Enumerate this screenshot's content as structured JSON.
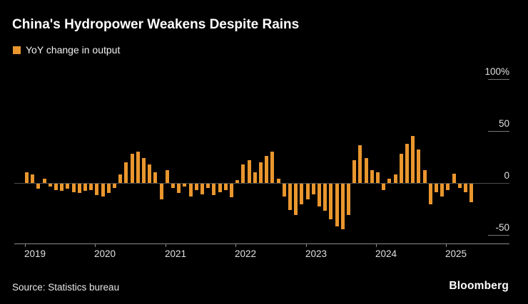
{
  "header": {
    "title": "China's Hydropower Weakens Despite Rains"
  },
  "legend": {
    "label": "YoY change in output",
    "swatch_color": "#E9962E"
  },
  "y_axis": {
    "labels": [
      "100%",
      "50",
      "0",
      "-50"
    ]
  },
  "x_axis": {
    "labels": [
      "2019",
      "2020",
      "2021",
      "2022",
      "2023",
      "2024",
      "2025"
    ]
  },
  "footer": {
    "source": "Source: Statistics bureau",
    "brand": "Bloomberg"
  },
  "chart_data": {
    "type": "bar",
    "title": "China's Hydropower Weakens Despite Rains",
    "series_name": "YoY change in output",
    "unit": "%",
    "ylim": [
      -50,
      100
    ],
    "y_ticks": [
      100,
      50,
      0,
      -50
    ],
    "grid": "zero-line only, right-side tick stubs",
    "legend_position": "top-left",
    "bar_color": "#E9962E",
    "x": [
      "2019-01",
      "2019-02",
      "2019-03",
      "2019-04",
      "2019-05",
      "2019-06",
      "2019-07",
      "2019-08",
      "2019-09",
      "2019-10",
      "2019-11",
      "2019-12",
      "2020-01",
      "2020-02",
      "2020-03",
      "2020-04",
      "2020-05",
      "2020-06",
      "2020-07",
      "2020-08",
      "2020-09",
      "2020-10",
      "2020-11",
      "2020-12",
      "2021-01",
      "2021-02",
      "2021-03",
      "2021-04",
      "2021-05",
      "2021-06",
      "2021-07",
      "2021-08",
      "2021-09",
      "2021-10",
      "2021-11",
      "2021-12",
      "2022-01",
      "2022-02",
      "2022-03",
      "2022-04",
      "2022-05",
      "2022-06",
      "2022-07",
      "2022-08",
      "2022-09",
      "2022-10",
      "2022-11",
      "2022-12",
      "2023-01",
      "2023-02",
      "2023-03",
      "2023-04",
      "2023-05",
      "2023-06",
      "2023-07",
      "2023-08",
      "2023-09",
      "2023-10",
      "2023-11",
      "2023-12",
      "2024-01",
      "2024-02",
      "2024-03",
      "2024-04",
      "2024-05",
      "2024-06",
      "2024-07",
      "2024-08",
      "2024-09",
      "2024-10",
      "2024-11",
      "2024-12",
      "2025-01",
      "2025-02",
      "2025-03",
      "2025-04",
      "2025-05"
    ],
    "values": [
      10,
      8,
      -5,
      4,
      -3,
      -6,
      -7,
      -5,
      -8,
      -9,
      -7,
      -6,
      -11,
      -12,
      -9,
      -4,
      8,
      20,
      28,
      30,
      24,
      18,
      10,
      -15,
      12,
      -4,
      -9,
      -3,
      -12,
      -6,
      -10,
      -4,
      -11,
      -8,
      -6,
      -13,
      3,
      18,
      22,
      10,
      20,
      26,
      30,
      4,
      -12,
      -25,
      -30,
      -20,
      -15,
      -10,
      -22,
      -26,
      -34,
      -41,
      -44,
      -30,
      22,
      36,
      24,
      12,
      10,
      -6,
      4,
      8,
      28,
      38,
      45,
      32,
      12,
      -20,
      -8,
      -12,
      -6,
      9,
      -4,
      -8,
      -18
    ]
  }
}
